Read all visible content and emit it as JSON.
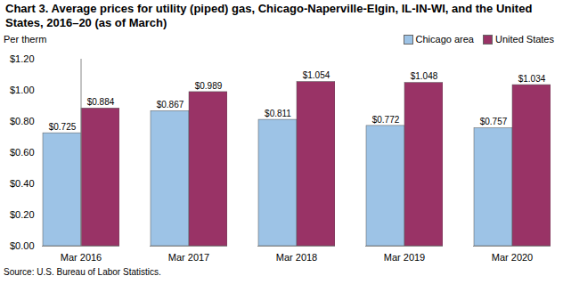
{
  "chart_data": {
    "type": "bar",
    "title": "Chart 3. Average prices for utility (piped) gas, Chicago-Naperville-Elgin, IL-IN-WI, and the United States, 2016–20 (as of March)",
    "y_label": "Per therm",
    "caption": "Source: U.S. Bureau of Labor Statistics.",
    "categories": [
      "Mar 2016",
      "Mar 2017",
      "Mar 2018",
      "Mar 2019",
      "Mar 2020"
    ],
    "series": [
      {
        "name": "Chicago area",
        "color": "#9DC3E6",
        "values": [
          0.725,
          0.867,
          0.811,
          0.772,
          0.757
        ],
        "value_labels": [
          "$0.725",
          "$0.867",
          "$0.811",
          "$0.772",
          "$0.757"
        ]
      },
      {
        "name": "United States",
        "color": "#993366",
        "values": [
          0.884,
          0.989,
          1.054,
          1.048,
          1.034
        ],
        "value_labels": [
          "$0.884",
          "$0.989",
          "$1.054",
          "$1.048",
          "$1.034"
        ]
      }
    ],
    "ylim": [
      0,
      1.2
    ],
    "yticks": [
      {
        "value": 0,
        "label": "$0.00"
      },
      {
        "value": 0.2,
        "label": "$0.20"
      },
      {
        "value": 0.4,
        "label": "$0.40"
      },
      {
        "value": 0.6,
        "label": "$0.60"
      },
      {
        "value": 0.8,
        "label": "$0.80"
      },
      {
        "value": 1.0,
        "label": "$1.00"
      },
      {
        "value": 1.2,
        "label": "$1.20"
      }
    ],
    "grid": false,
    "legend": "top-right",
    "data_labels": true
  }
}
